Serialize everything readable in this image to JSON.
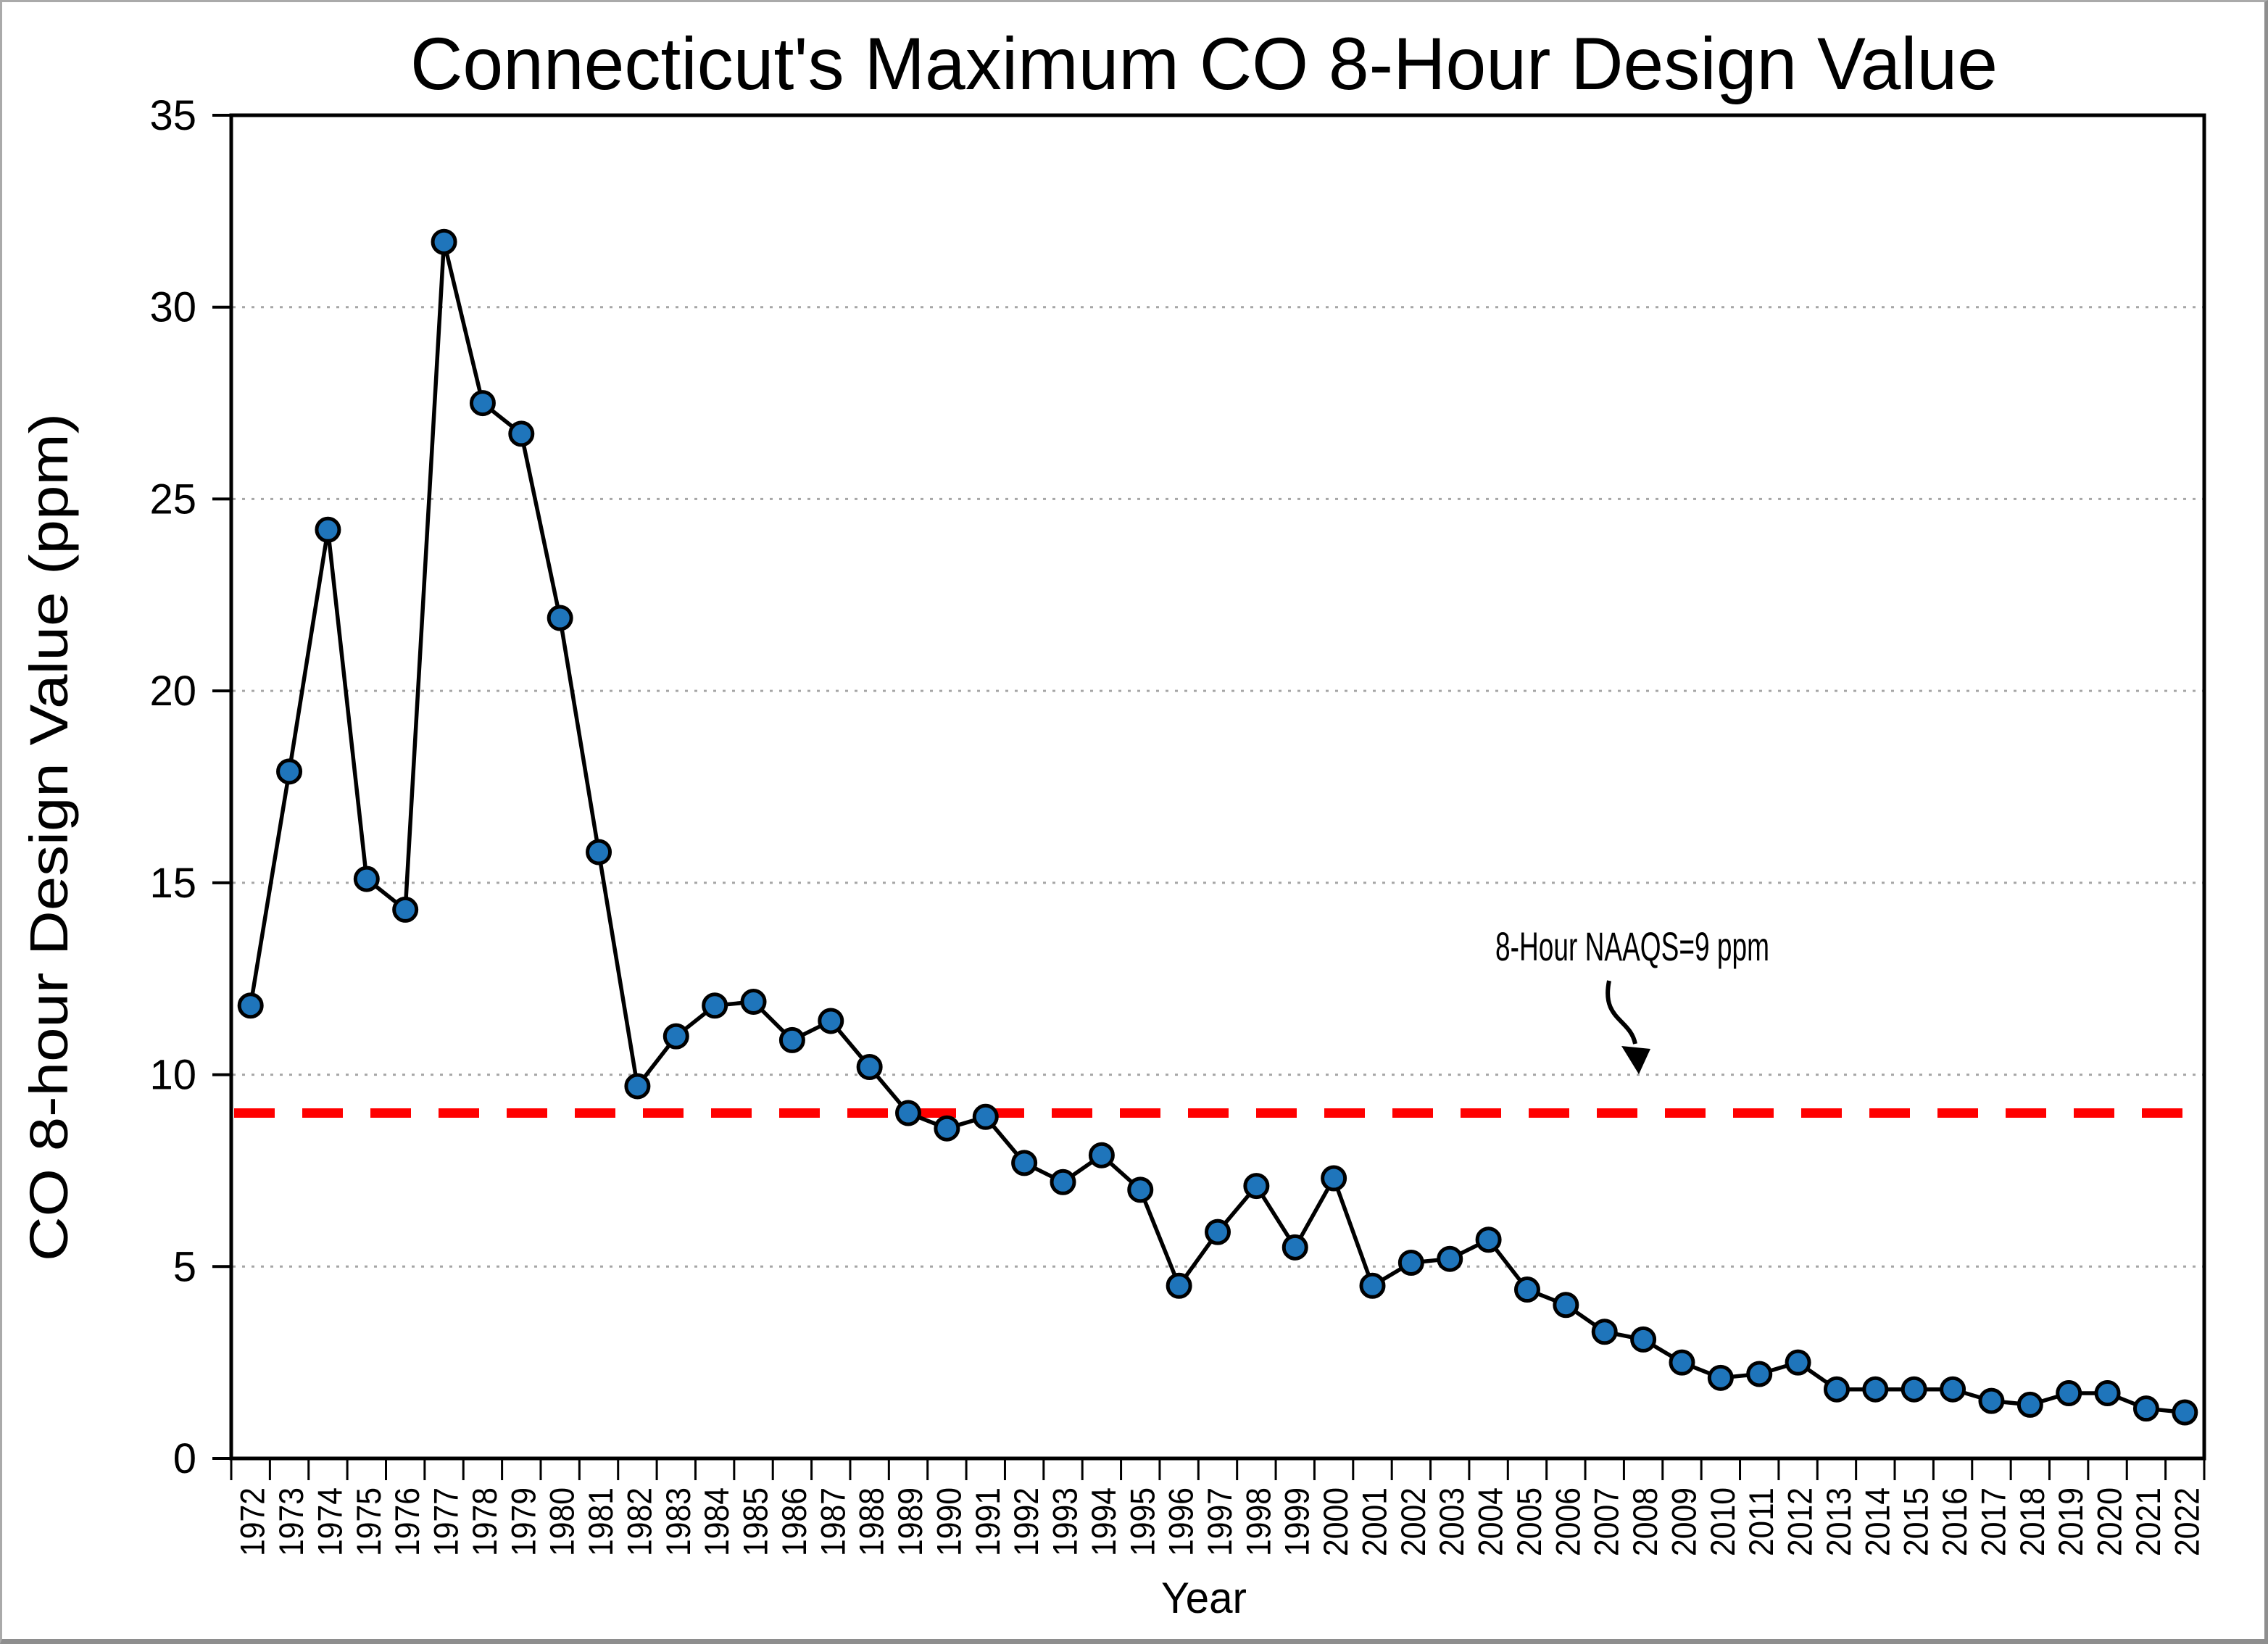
{
  "window": {
    "border_color": "#8e8e8e"
  },
  "chart_data": {
    "type": "line",
    "title": "Connecticut's Maximum CO 8-Hour Design Value",
    "xlabel": "Year",
    "ylabel": "CO 8-hour Design Value (ppm)",
    "ylim": [
      0,
      35
    ],
    "ytick_step": 5,
    "yticks": [
      0,
      5,
      10,
      15,
      20,
      25,
      30,
      35
    ],
    "grid": "horizontal dotted gridlines at each 5 ppm",
    "legend": "none",
    "x": [
      1972,
      1973,
      1974,
      1975,
      1976,
      1977,
      1978,
      1979,
      1980,
      1981,
      1982,
      1983,
      1984,
      1985,
      1986,
      1987,
      1988,
      1989,
      1990,
      1991,
      1992,
      1993,
      1994,
      1995,
      1996,
      1997,
      1998,
      1999,
      2000,
      2001,
      2002,
      2003,
      2004,
      2005,
      2006,
      2007,
      2008,
      2009,
      2010,
      2011,
      2012,
      2013,
      2014,
      2015,
      2016,
      2017,
      2018,
      2019,
      2020,
      2021,
      2022
    ],
    "series": [
      {
        "name": "Maximum CO 8-hour design value (ppm)",
        "values": [
          11.8,
          17.9,
          24.2,
          15.1,
          14.3,
          31.7,
          27.5,
          26.7,
          21.9,
          15.8,
          9.7,
          11.0,
          11.8,
          11.9,
          10.9,
          11.4,
          10.2,
          9.0,
          8.6,
          8.9,
          7.7,
          7.2,
          7.9,
          7.0,
          4.5,
          5.9,
          7.1,
          5.5,
          7.3,
          4.5,
          5.1,
          5.2,
          5.7,
          4.4,
          4.0,
          3.3,
          3.1,
          2.5,
          2.1,
          2.2,
          2.5,
          1.8,
          1.8,
          1.8,
          1.8,
          1.5,
          1.4,
          1.7,
          1.7,
          1.3,
          1.2
        ]
      }
    ],
    "reference_line": {
      "label": "8-Hour NAAQS=9 ppm",
      "value": 9,
      "color": "#ff0000",
      "style": "dashed"
    },
    "colors": {
      "line": "#000000",
      "marker_fill": "#1f75bb",
      "marker_stroke": "#000000",
      "gridline": "#a6a6a6",
      "frame": "#000000",
      "text": "#000000"
    }
  }
}
